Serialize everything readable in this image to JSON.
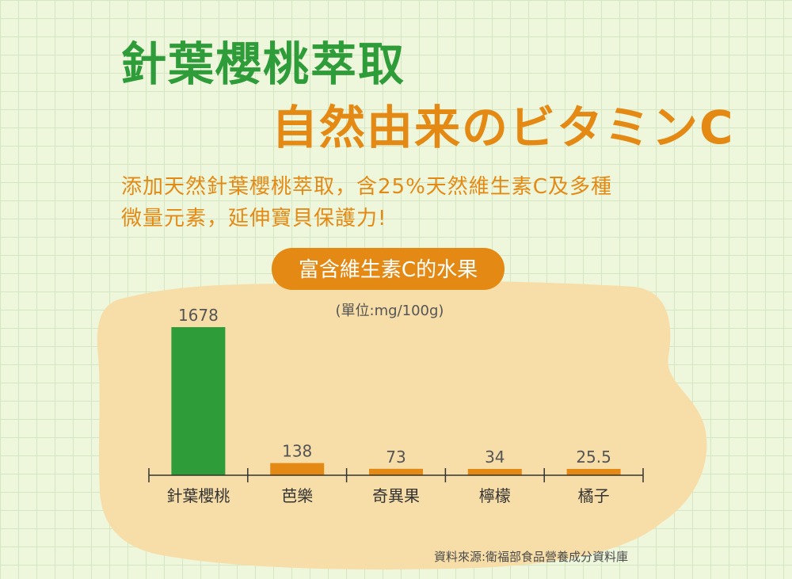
{
  "heading": {
    "title": "針葉櫻桃萃取",
    "subtitle": "自然由来のビタミンC"
  },
  "description": {
    "line1": "添加天然針葉櫻桃萃取，含25%天然維生素C及多種",
    "line2": "微量元素，延伸寶貝保護力!"
  },
  "colors": {
    "green": "#2f9c3a",
    "orange": "#e48a14",
    "blob": "#f7dea8"
  },
  "chart_data": {
    "type": "bar",
    "title": "富含維生素C的水果",
    "unit_label": "(單位:mg/100g)",
    "categories": [
      "針葉櫻桃",
      "芭樂",
      "奇異果",
      "檸檬",
      "橘子"
    ],
    "values": [
      1678,
      138,
      73,
      34,
      25.5
    ],
    "value_labels": [
      "1678",
      "138",
      "73",
      "34",
      "25.5"
    ],
    "bar_colors": [
      "#2f9c3a",
      "#e48a14",
      "#e48a14",
      "#e48a14",
      "#e48a14"
    ],
    "ylim": [
      0,
      1678
    ],
    "grid": false,
    "legend": "none"
  },
  "footer": {
    "source": "資料來源:衛福部食品營養成分資料庫"
  }
}
